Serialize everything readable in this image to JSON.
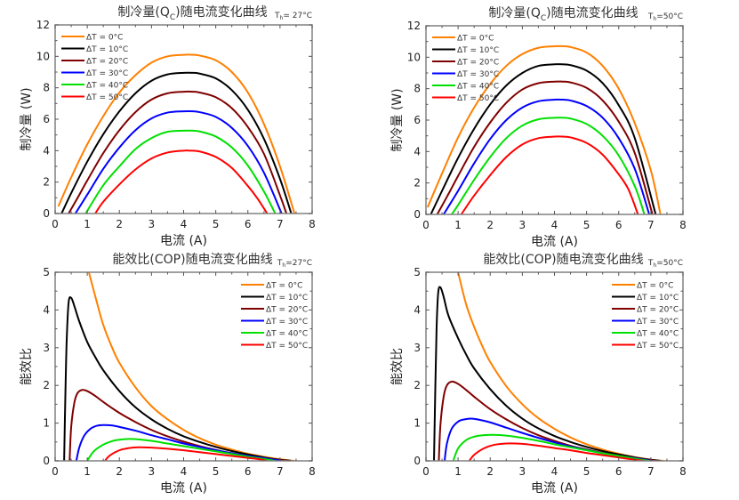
{
  "chart_data": [
    {
      "id": "qc-27",
      "type": "line",
      "title": "制冷量(Qc)随电流变化曲线",
      "title_parts": {
        "pre": "制冷量(Q",
        "sub": "C",
        "post": ")随电流变化曲线"
      },
      "annotation": {
        "pre": "T",
        "sub": "h",
        "post": "= 27°C"
      },
      "xlabel": "电流 (A)",
      "ylabel": "制冷量 (W)",
      "xlim": [
        0,
        8
      ],
      "ylim": [
        0,
        12
      ],
      "xticks": [
        0,
        1,
        2,
        3,
        4,
        5,
        6,
        7,
        8
      ],
      "yticks": [
        0,
        2,
        4,
        6,
        8,
        10,
        12
      ],
      "grid": false,
      "legend_position": "top-left",
      "series": [
        {
          "name": "ΔT = 0°C",
          "color": "#ff8000",
          "x": [
            0.1,
            0.5,
            1,
            1.5,
            2,
            2.5,
            3,
            3.5,
            4,
            4.3,
            4.5,
            5,
            5.5,
            6,
            6.5,
            7,
            7.45
          ],
          "y": [
            0.45,
            2.3,
            4.4,
            6.2,
            7.7,
            8.8,
            9.6,
            10.0,
            10.1,
            10.1,
            10.05,
            9.75,
            9.0,
            7.7,
            5.7,
            3.0,
            0.0
          ]
        },
        {
          "name": "ΔT = 10°C",
          "color": "#000000",
          "x": [
            0.2,
            0.5,
            1,
            1.5,
            2,
            2.5,
            3,
            3.5,
            4,
            4.3,
            4.5,
            5,
            5.5,
            6,
            6.5,
            7,
            7.35
          ],
          "y": [
            0.0,
            1.3,
            3.3,
            5.05,
            6.5,
            7.65,
            8.45,
            8.85,
            8.95,
            8.95,
            8.9,
            8.6,
            7.85,
            6.6,
            4.75,
            2.2,
            0.0
          ]
        },
        {
          "name": "ΔT = 20°C",
          "color": "#800000",
          "x": [
            0.42,
            0.7,
            1,
            1.5,
            2,
            2.5,
            3,
            3.5,
            4,
            4.3,
            4.5,
            5,
            5.5,
            6,
            6.5,
            7,
            7.2
          ],
          "y": [
            0.0,
            1.0,
            2.1,
            3.85,
            5.3,
            6.45,
            7.25,
            7.65,
            7.75,
            7.75,
            7.7,
            7.4,
            6.7,
            5.5,
            3.8,
            1.15,
            0.0
          ]
        },
        {
          "name": "ΔT = 30°C",
          "color": "#0000ff",
          "x": [
            0.63,
            1,
            1.5,
            2,
            2.5,
            3,
            3.5,
            4,
            4.3,
            4.5,
            5,
            5.5,
            6,
            6.5,
            7.05
          ],
          "y": [
            0.0,
            1.2,
            2.85,
            4.2,
            5.3,
            6.05,
            6.42,
            6.5,
            6.5,
            6.45,
            6.15,
            5.45,
            4.3,
            2.6,
            0.0
          ]
        },
        {
          "name": "ΔT = 40°C",
          "color": "#00e000",
          "x": [
            0.95,
            1.5,
            2,
            2.5,
            3,
            3.5,
            4,
            4.3,
            4.5,
            5,
            5.5,
            6,
            6.5,
            6.85
          ],
          "y": [
            0.0,
            1.8,
            3.0,
            4.1,
            4.8,
            5.2,
            5.27,
            5.27,
            5.22,
            4.9,
            4.2,
            3.05,
            1.4,
            0.0
          ]
        },
        {
          "name": "ΔT = 50°C",
          "color": "#ff0000",
          "x": [
            1.25,
            1.5,
            2,
            2.5,
            3,
            3.5,
            4,
            4.2,
            4.5,
            5,
            5.5,
            6,
            6.3,
            6.6
          ],
          "y": [
            0.0,
            0.75,
            1.85,
            2.8,
            3.5,
            3.88,
            4.0,
            4.0,
            3.95,
            3.6,
            2.9,
            1.75,
            0.95,
            0.0
          ]
        }
      ]
    },
    {
      "id": "qc-50",
      "type": "line",
      "title": "制冷量(Qc)随电流变化曲线",
      "title_parts": {
        "pre": "制冷量(Q",
        "sub": "C",
        "post": ")随电流变化曲线"
      },
      "annotation": {
        "pre": "T",
        "sub": "h",
        "post": "=50°C"
      },
      "xlabel": "电流 (A)",
      "ylabel": "制冷量 (W)",
      "xlim": [
        0,
        8
      ],
      "ylim": [
        0,
        12
      ],
      "xticks": [
        0,
        1,
        2,
        3,
        4,
        5,
        6,
        7,
        8
      ],
      "yticks": [
        0,
        2,
        4,
        6,
        8,
        10,
        12
      ],
      "grid": false,
      "legend_position": "top-left",
      "series": [
        {
          "name": "ΔT = 0°C",
          "color": "#ff8000",
          "x": [
            0.05,
            0.5,
            1,
            1.5,
            2,
            2.5,
            3,
            3.5,
            4,
            4.25,
            4.5,
            5,
            5.5,
            6,
            6.5,
            7,
            7.3
          ],
          "y": [
            0.45,
            2.6,
            4.9,
            6.8,
            8.3,
            9.45,
            10.2,
            10.6,
            10.7,
            10.7,
            10.65,
            10.3,
            9.45,
            8.0,
            5.8,
            2.8,
            0.0
          ]
        },
        {
          "name": "ΔT = 10°C",
          "color": "#000000",
          "x": [
            0.15,
            0.5,
            1,
            1.5,
            2,
            2.5,
            3,
            3.5,
            4,
            4.25,
            4.5,
            5,
            5.5,
            6,
            6.5,
            7.15
          ],
          "y": [
            0.0,
            1.5,
            3.6,
            5.45,
            7.0,
            8.2,
            9.0,
            9.45,
            9.55,
            9.55,
            9.5,
            9.15,
            8.35,
            6.95,
            4.85,
            0.0
          ]
        },
        {
          "name": "ΔT = 20°C",
          "color": "#800000",
          "x": [
            0.35,
            0.7,
            1,
            1.5,
            2,
            2.5,
            3,
            3.5,
            4,
            4.25,
            4.5,
            5,
            5.5,
            6,
            6.5,
            7.05
          ],
          "y": [
            0.0,
            1.3,
            2.45,
            4.3,
            5.85,
            7.1,
            7.95,
            8.35,
            8.45,
            8.45,
            8.4,
            8.05,
            7.25,
            5.9,
            3.9,
            0.0
          ]
        },
        {
          "name": "ΔT = 30°C",
          "color": "#0000ff",
          "x": [
            0.55,
            1,
            1.5,
            2,
            2.5,
            3,
            3.5,
            4,
            4.25,
            4.5,
            5,
            5.5,
            6,
            6.5,
            6.95
          ],
          "y": [
            0.0,
            1.5,
            3.25,
            4.8,
            6.0,
            6.8,
            7.2,
            7.3,
            7.3,
            7.25,
            6.9,
            6.15,
            4.85,
            2.9,
            0.0
          ]
        },
        {
          "name": "ΔT = 40°C",
          "color": "#00e000",
          "x": [
            0.8,
            1,
            1.5,
            2,
            2.5,
            3,
            3.5,
            4,
            4.25,
            4.5,
            5,
            5.5,
            6,
            6.5,
            6.8
          ],
          "y": [
            0.0,
            0.6,
            2.2,
            3.65,
            4.85,
            5.65,
            6.05,
            6.15,
            6.15,
            6.1,
            5.75,
            5.0,
            3.75,
            1.8,
            0.0
          ]
        },
        {
          "name": "ΔT = 50°C",
          "color": "#ff0000",
          "x": [
            1.1,
            1.5,
            2,
            2.5,
            3,
            3.5,
            4,
            4.25,
            4.5,
            5,
            5.5,
            6,
            6.3,
            6.6
          ],
          "y": [
            0.0,
            1.2,
            2.5,
            3.65,
            4.45,
            4.85,
            4.95,
            4.95,
            4.9,
            4.55,
            3.8,
            2.55,
            1.6,
            0.0
          ]
        }
      ]
    },
    {
      "id": "cop-27",
      "type": "line",
      "title": "能效比(COP)随电流变化曲线",
      "title_parts": {
        "pre": "能效比(COP)随电流变化曲线",
        "sub": "",
        "post": ""
      },
      "annotation": {
        "pre": "T",
        "sub": "h",
        "post": "=27°C"
      },
      "xlabel": "电流 (A)",
      "ylabel": "能效比",
      "xlim": [
        0,
        8
      ],
      "ylim": [
        0,
        5
      ],
      "xticks": [
        0,
        1,
        2,
        3,
        4,
        5,
        6,
        7,
        8
      ],
      "yticks": [
        0,
        1,
        2,
        3,
        4,
        5
      ],
      "grid": false,
      "legend_position": "top-right",
      "series": [
        {
          "name": "ΔT = 0°C",
          "color": "#ff8000",
          "x": [
            1.05,
            1.3,
            1.5,
            1.75,
            2,
            2.5,
            3,
            3.5,
            4,
            4.5,
            5,
            5.5,
            6,
            6.5,
            7,
            7.45
          ],
          "y": [
            5.0,
            4.2,
            3.6,
            3.05,
            2.6,
            1.95,
            1.45,
            1.1,
            0.82,
            0.6,
            0.43,
            0.3,
            0.19,
            0.11,
            0.04,
            0.0
          ]
        },
        {
          "name": "ΔT = 10°C",
          "color": "#000000",
          "x": [
            0.28,
            0.32,
            0.36,
            0.42,
            0.5,
            0.6,
            0.75,
            1,
            1.25,
            1.5,
            2,
            2.5,
            3,
            3.5,
            4,
            4.5,
            5,
            5.5,
            6,
            6.5,
            7,
            7.35
          ],
          "y": [
            0.0,
            1.8,
            3.2,
            4.2,
            4.32,
            4.1,
            3.7,
            3.15,
            2.75,
            2.4,
            1.85,
            1.42,
            1.1,
            0.85,
            0.65,
            0.5,
            0.37,
            0.26,
            0.17,
            0.09,
            0.03,
            0.0
          ]
        },
        {
          "name": "ΔT = 20°C",
          "color": "#800000",
          "x": [
            0.45,
            0.5,
            0.6,
            0.7,
            0.85,
            1,
            1.25,
            1.5,
            2,
            2.5,
            3,
            3.5,
            4,
            4.5,
            5,
            5.5,
            6,
            6.5,
            7,
            7.2
          ],
          "y": [
            0.0,
            0.9,
            1.55,
            1.8,
            1.88,
            1.85,
            1.72,
            1.56,
            1.27,
            1.03,
            0.82,
            0.65,
            0.51,
            0.39,
            0.29,
            0.2,
            0.13,
            0.07,
            0.02,
            0.0
          ]
        },
        {
          "name": "ΔT = 30°C",
          "color": "#0000ff",
          "x": [
            0.66,
            0.75,
            0.9,
            1.1,
            1.3,
            1.5,
            1.75,
            2,
            2.5,
            3,
            3.5,
            4,
            4.5,
            5,
            5.5,
            6,
            6.5,
            7.05
          ],
          "y": [
            0.0,
            0.35,
            0.66,
            0.85,
            0.93,
            0.95,
            0.94,
            0.9,
            0.8,
            0.68,
            0.57,
            0.46,
            0.37,
            0.28,
            0.2,
            0.13,
            0.07,
            0.0
          ]
        },
        {
          "name": "ΔT = 40°C",
          "color": "#00e000",
          "x": [
            1.0,
            1.2,
            1.5,
            1.8,
            2,
            2.3,
            2.6,
            3,
            3.5,
            4,
            4.5,
            5,
            5.5,
            6,
            6.5,
            6.85
          ],
          "y": [
            0.0,
            0.25,
            0.43,
            0.53,
            0.56,
            0.58,
            0.57,
            0.53,
            0.46,
            0.39,
            0.32,
            0.25,
            0.18,
            0.11,
            0.05,
            0.0
          ]
        },
        {
          "name": "ΔT = 50°C",
          "color": "#ff0000",
          "x": [
            1.55,
            1.7,
            2,
            2.3,
            2.6,
            3,
            3.5,
            4,
            4.5,
            5,
            5.5,
            6,
            6.3,
            6.6
          ],
          "y": [
            0.0,
            0.14,
            0.28,
            0.34,
            0.36,
            0.35,
            0.32,
            0.28,
            0.23,
            0.18,
            0.13,
            0.08,
            0.05,
            0.0
          ]
        }
      ]
    },
    {
      "id": "cop-50",
      "type": "line",
      "title": "能效比(COP)随电流变化曲线",
      "title_parts": {
        "pre": "能效比(COP)随电流变化曲线",
        "sub": "",
        "post": ""
      },
      "annotation": {
        "pre": "T",
        "sub": "h",
        "post": "=50°C"
      },
      "xlabel": "电流 (A)",
      "ylabel": "能效比",
      "xlim": [
        0,
        8
      ],
      "ylim": [
        0,
        5
      ],
      "xticks": [
        0,
        1,
        2,
        3,
        4,
        5,
        6,
        7,
        8
      ],
      "yticks": [
        0,
        1,
        2,
        3,
        4,
        5
      ],
      "grid": false,
      "legend_position": "top-right",
      "series": [
        {
          "name": "ΔT = 0°C",
          "color": "#ff8000",
          "x": [
            1.0,
            1.25,
            1.5,
            1.75,
            2,
            2.5,
            3,
            3.5,
            4,
            4.5,
            5,
            5.5,
            6,
            6.5,
            7,
            7.4
          ],
          "y": [
            5.0,
            4.15,
            3.55,
            3.05,
            2.62,
            1.98,
            1.5,
            1.13,
            0.85,
            0.62,
            0.44,
            0.3,
            0.19,
            0.1,
            0.03,
            0.0
          ]
        },
        {
          "name": "ΔT = 10°C",
          "color": "#000000",
          "x": [
            0.25,
            0.29,
            0.33,
            0.38,
            0.45,
            0.55,
            0.7,
            1,
            1.25,
            1.5,
            2,
            2.5,
            3,
            3.5,
            4,
            4.5,
            5,
            5.5,
            6,
            6.5,
            7,
            7.3
          ],
          "y": [
            0.0,
            1.9,
            3.5,
            4.45,
            4.6,
            4.35,
            3.85,
            3.25,
            2.82,
            2.45,
            1.9,
            1.46,
            1.12,
            0.86,
            0.66,
            0.5,
            0.37,
            0.26,
            0.17,
            0.09,
            0.03,
            0.0
          ]
        },
        {
          "name": "ΔT = 20°C",
          "color": "#800000",
          "x": [
            0.4,
            0.45,
            0.55,
            0.65,
            0.8,
            1,
            1.25,
            1.5,
            2,
            2.5,
            3,
            3.5,
            4,
            4.5,
            5,
            5.5,
            6,
            6.5,
            7,
            7.15
          ],
          "y": [
            0.0,
            0.95,
            1.7,
            2.0,
            2.1,
            2.04,
            1.88,
            1.7,
            1.37,
            1.1,
            0.87,
            0.68,
            0.53,
            0.4,
            0.3,
            0.21,
            0.13,
            0.07,
            0.02,
            0.0
          ]
        },
        {
          "name": "ΔT = 30°C",
          "color": "#0000ff",
          "x": [
            0.58,
            0.65,
            0.8,
            1,
            1.2,
            1.4,
            1.6,
            2,
            2.5,
            3,
            3.5,
            4,
            4.5,
            5,
            5.5,
            6,
            6.5,
            7.05
          ],
          "y": [
            0.0,
            0.45,
            0.85,
            1.04,
            1.1,
            1.12,
            1.1,
            1.02,
            0.88,
            0.74,
            0.61,
            0.49,
            0.38,
            0.29,
            0.2,
            0.13,
            0.07,
            0.0
          ]
        },
        {
          "name": "ΔT = 40°C",
          "color": "#00e000",
          "x": [
            0.85,
            1.0,
            1.25,
            1.5,
            1.8,
            2.1,
            2.5,
            3,
            3.5,
            4,
            4.5,
            5,
            5.5,
            6,
            6.5,
            6.95
          ],
          "y": [
            0.0,
            0.33,
            0.55,
            0.64,
            0.68,
            0.69,
            0.67,
            0.61,
            0.53,
            0.44,
            0.36,
            0.28,
            0.2,
            0.13,
            0.06,
            0.0
          ]
        },
        {
          "name": "ΔT = 50°C",
          "color": "#ff0000",
          "x": [
            1.35,
            1.5,
            1.8,
            2.1,
            2.5,
            3,
            3.5,
            4,
            4.5,
            5,
            5.5,
            6,
            6.5,
            6.8
          ],
          "y": [
            0.0,
            0.16,
            0.33,
            0.42,
            0.46,
            0.45,
            0.4,
            0.34,
            0.28,
            0.21,
            0.15,
            0.09,
            0.03,
            0.0
          ]
        }
      ]
    }
  ]
}
